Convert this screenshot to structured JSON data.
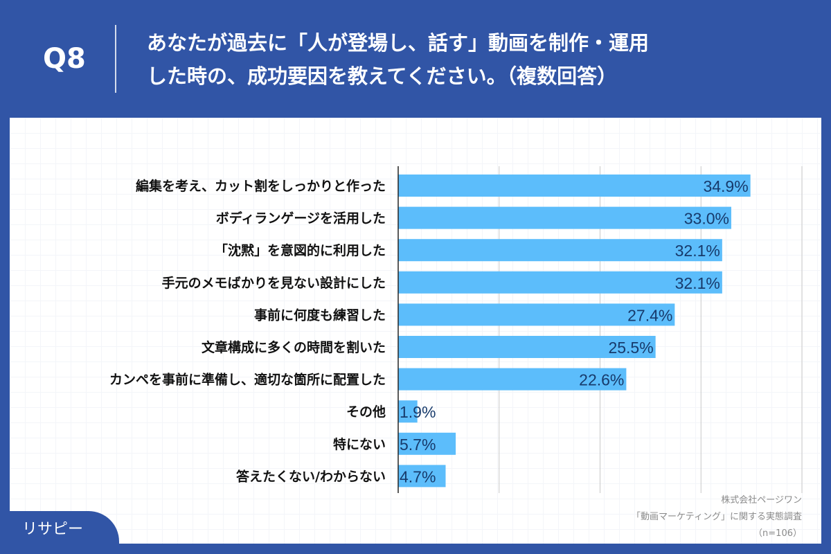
{
  "header": {
    "question_no": "Q8",
    "title_line1": "あなたが過去に「人が登場し、話す」動画を制作・運用",
    "title_line2": "した時の、成功要因を教えてください。（複数回答）"
  },
  "chart_data": {
    "type": "bar",
    "orientation": "horizontal",
    "categories": [
      "編集を考え、カット割をしっかりと作った",
      "ボディランゲージを活用した",
      "「沈黙」を意図的に利用した",
      "手元のメモばかりを見ない設計にした",
      "事前に何度も練習した",
      "文章構成に多くの時間を割いた",
      "カンペを事前に準備し、適切な箇所に配置した",
      "その他",
      "特にない",
      "答えたくない/わからない"
    ],
    "values": [
      34.9,
      33.0,
      32.1,
      32.1,
      27.4,
      25.5,
      22.6,
      1.9,
      5.7,
      4.7
    ],
    "labels": [
      "34.9%",
      "33.0%",
      "32.1%",
      "32.1%",
      "27.4%",
      "25.5%",
      "22.6%",
      "1.9%",
      "5.7%",
      "4.7%"
    ],
    "xlim": [
      0,
      40
    ],
    "grid": true,
    "gridlines": [
      10,
      20,
      30,
      40
    ],
    "bar_color": "#5cbdfb",
    "label_color": "#173a6b"
  },
  "source": {
    "line1": "株式会社ページワン",
    "line2": "「動画マーケティング」に関する実態調査",
    "line3": "（n=106）"
  },
  "logo": {
    "text": "リサピー"
  }
}
